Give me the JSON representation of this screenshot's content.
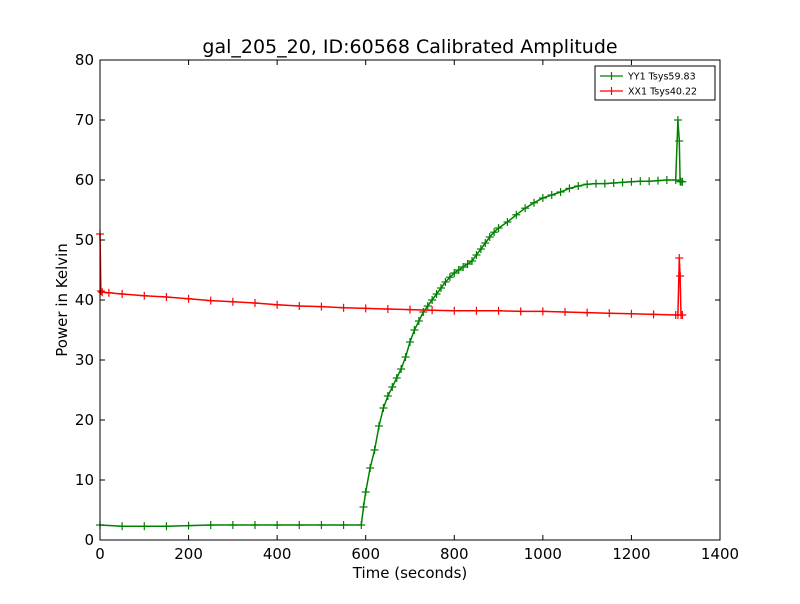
{
  "chart_data": {
    "type": "line",
    "title": "gal_205_20, ID:60568 Calibrated Amplitude",
    "xlabel": "Time (seconds)",
    "ylabel": "Power in Kelvin",
    "xlim": [
      0,
      1400
    ],
    "ylim": [
      0,
      80
    ],
    "xticks": [
      0,
      200,
      400,
      600,
      800,
      1000,
      1200,
      1400
    ],
    "yticks": [
      0,
      10,
      20,
      30,
      40,
      50,
      60,
      70,
      80
    ],
    "grid": false,
    "legend_position": "top-right",
    "marker": "+",
    "series": [
      {
        "name": "YY1 Tsys59.83",
        "color": "#008000",
        "x": [
          0,
          50,
          100,
          150,
          200,
          250,
          300,
          350,
          400,
          450,
          500,
          550,
          590,
          595,
          600,
          610,
          620,
          630,
          640,
          650,
          660,
          670,
          680,
          690,
          700,
          710,
          720,
          730,
          740,
          750,
          760,
          770,
          780,
          790,
          800,
          810,
          820,
          830,
          840,
          850,
          860,
          870,
          880,
          890,
          900,
          920,
          940,
          960,
          980,
          1000,
          1020,
          1040,
          1060,
          1080,
          1100,
          1120,
          1140,
          1160,
          1180,
          1200,
          1220,
          1240,
          1260,
          1280,
          1300,
          1305,
          1308,
          1310,
          1312,
          1315
        ],
        "y": [
          2.5,
          2.3,
          2.3,
          2.3,
          2.4,
          2.5,
          2.5,
          2.5,
          2.5,
          2.5,
          2.5,
          2.5,
          2.5,
          5.5,
          8.0,
          12.0,
          15.0,
          19.0,
          22.0,
          24.0,
          25.5,
          27.0,
          28.5,
          30.5,
          33.0,
          35.0,
          36.5,
          38.0,
          39.0,
          40.0,
          41.0,
          42.0,
          43.0,
          43.8,
          44.5,
          45.0,
          45.5,
          46.0,
          46.5,
          47.5,
          48.5,
          49.5,
          50.5,
          51.3,
          52.0,
          53.0,
          54.2,
          55.3,
          56.2,
          57.0,
          57.5,
          58.0,
          58.6,
          59.0,
          59.3,
          59.4,
          59.4,
          59.5,
          59.6,
          59.7,
          59.8,
          59.8,
          59.9,
          60.0,
          60.0,
          70.0,
          66.5,
          59.8,
          59.7,
          59.7
        ]
      },
      {
        "name": "XX1 Tsys40.22",
        "color": "#ff0000",
        "x": [
          0,
          2,
          5,
          20,
          50,
          100,
          150,
          200,
          250,
          300,
          350,
          400,
          450,
          500,
          550,
          600,
          650,
          700,
          750,
          800,
          850,
          900,
          950,
          1000,
          1050,
          1100,
          1150,
          1200,
          1250,
          1300,
          1305,
          1308,
          1310,
          1312,
          1315
        ],
        "y": [
          51.0,
          41.5,
          41.3,
          41.2,
          41.0,
          40.7,
          40.5,
          40.2,
          39.9,
          39.7,
          39.5,
          39.2,
          39.0,
          38.9,
          38.7,
          38.6,
          38.5,
          38.4,
          38.3,
          38.2,
          38.2,
          38.2,
          38.1,
          38.1,
          38.0,
          37.9,
          37.8,
          37.7,
          37.6,
          37.5,
          37.5,
          47.0,
          44.0,
          37.5,
          37.5
        ]
      }
    ]
  }
}
